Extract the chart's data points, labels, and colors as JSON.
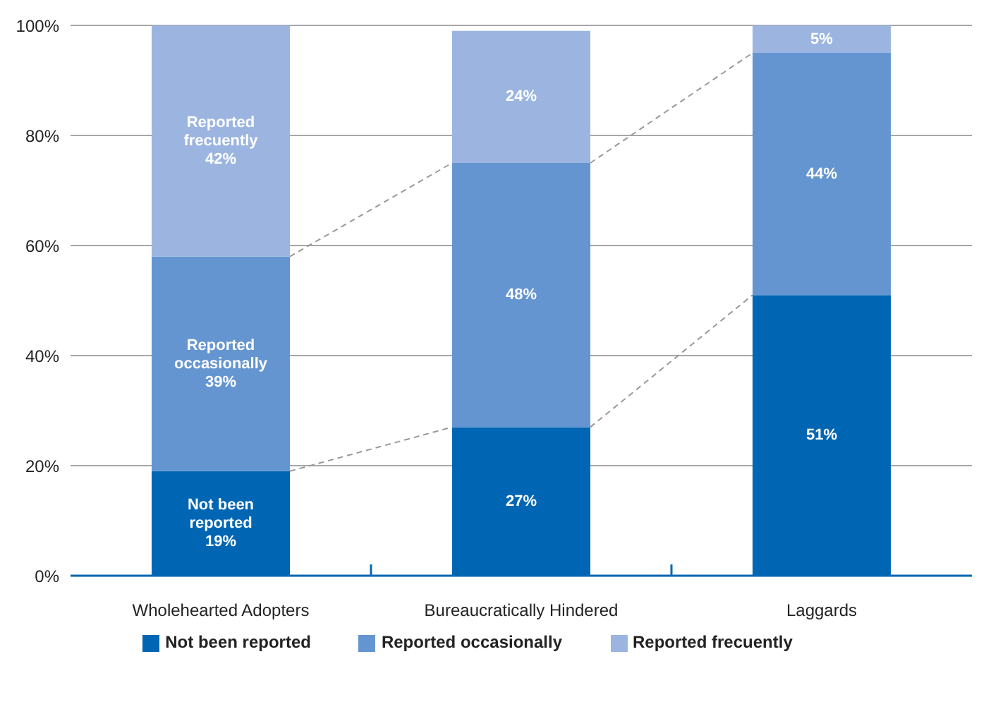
{
  "chart_data": {
    "type": "bar",
    "stacked": true,
    "categories": [
      "Wholehearted Adopters",
      "Bureaucratically Hindered",
      "Laggards"
    ],
    "series": [
      {
        "name": "Not been reported",
        "color": "#0066b3",
        "values": [
          19,
          27,
          51
        ],
        "value_labels": [
          "Not been reported 19%",
          "27%",
          "51%"
        ]
      },
      {
        "name": "Reported occasionally",
        "color": "#6495d0",
        "values": [
          39,
          48,
          44
        ],
        "value_labels": [
          "Reported occasionally 39%",
          "48%",
          "44%"
        ]
      },
      {
        "name": "Reported frecuently",
        "color": "#9bb5e0",
        "values": [
          42,
          24,
          5
        ],
        "value_labels": [
          "Reported frecuently 42%",
          "24%",
          "5%"
        ]
      }
    ],
    "ylim": [
      0,
      100
    ],
    "yticks": [
      {
        "value": 0,
        "label": "0%"
      },
      {
        "value": 20,
        "label": "20%"
      },
      {
        "value": 40,
        "label": "40%"
      },
      {
        "value": 60,
        "label": "60%"
      },
      {
        "value": 80,
        "label": "80%"
      },
      {
        "value": 100,
        "label": "100%"
      }
    ],
    "grid": "y",
    "legend": "bottom"
  }
}
